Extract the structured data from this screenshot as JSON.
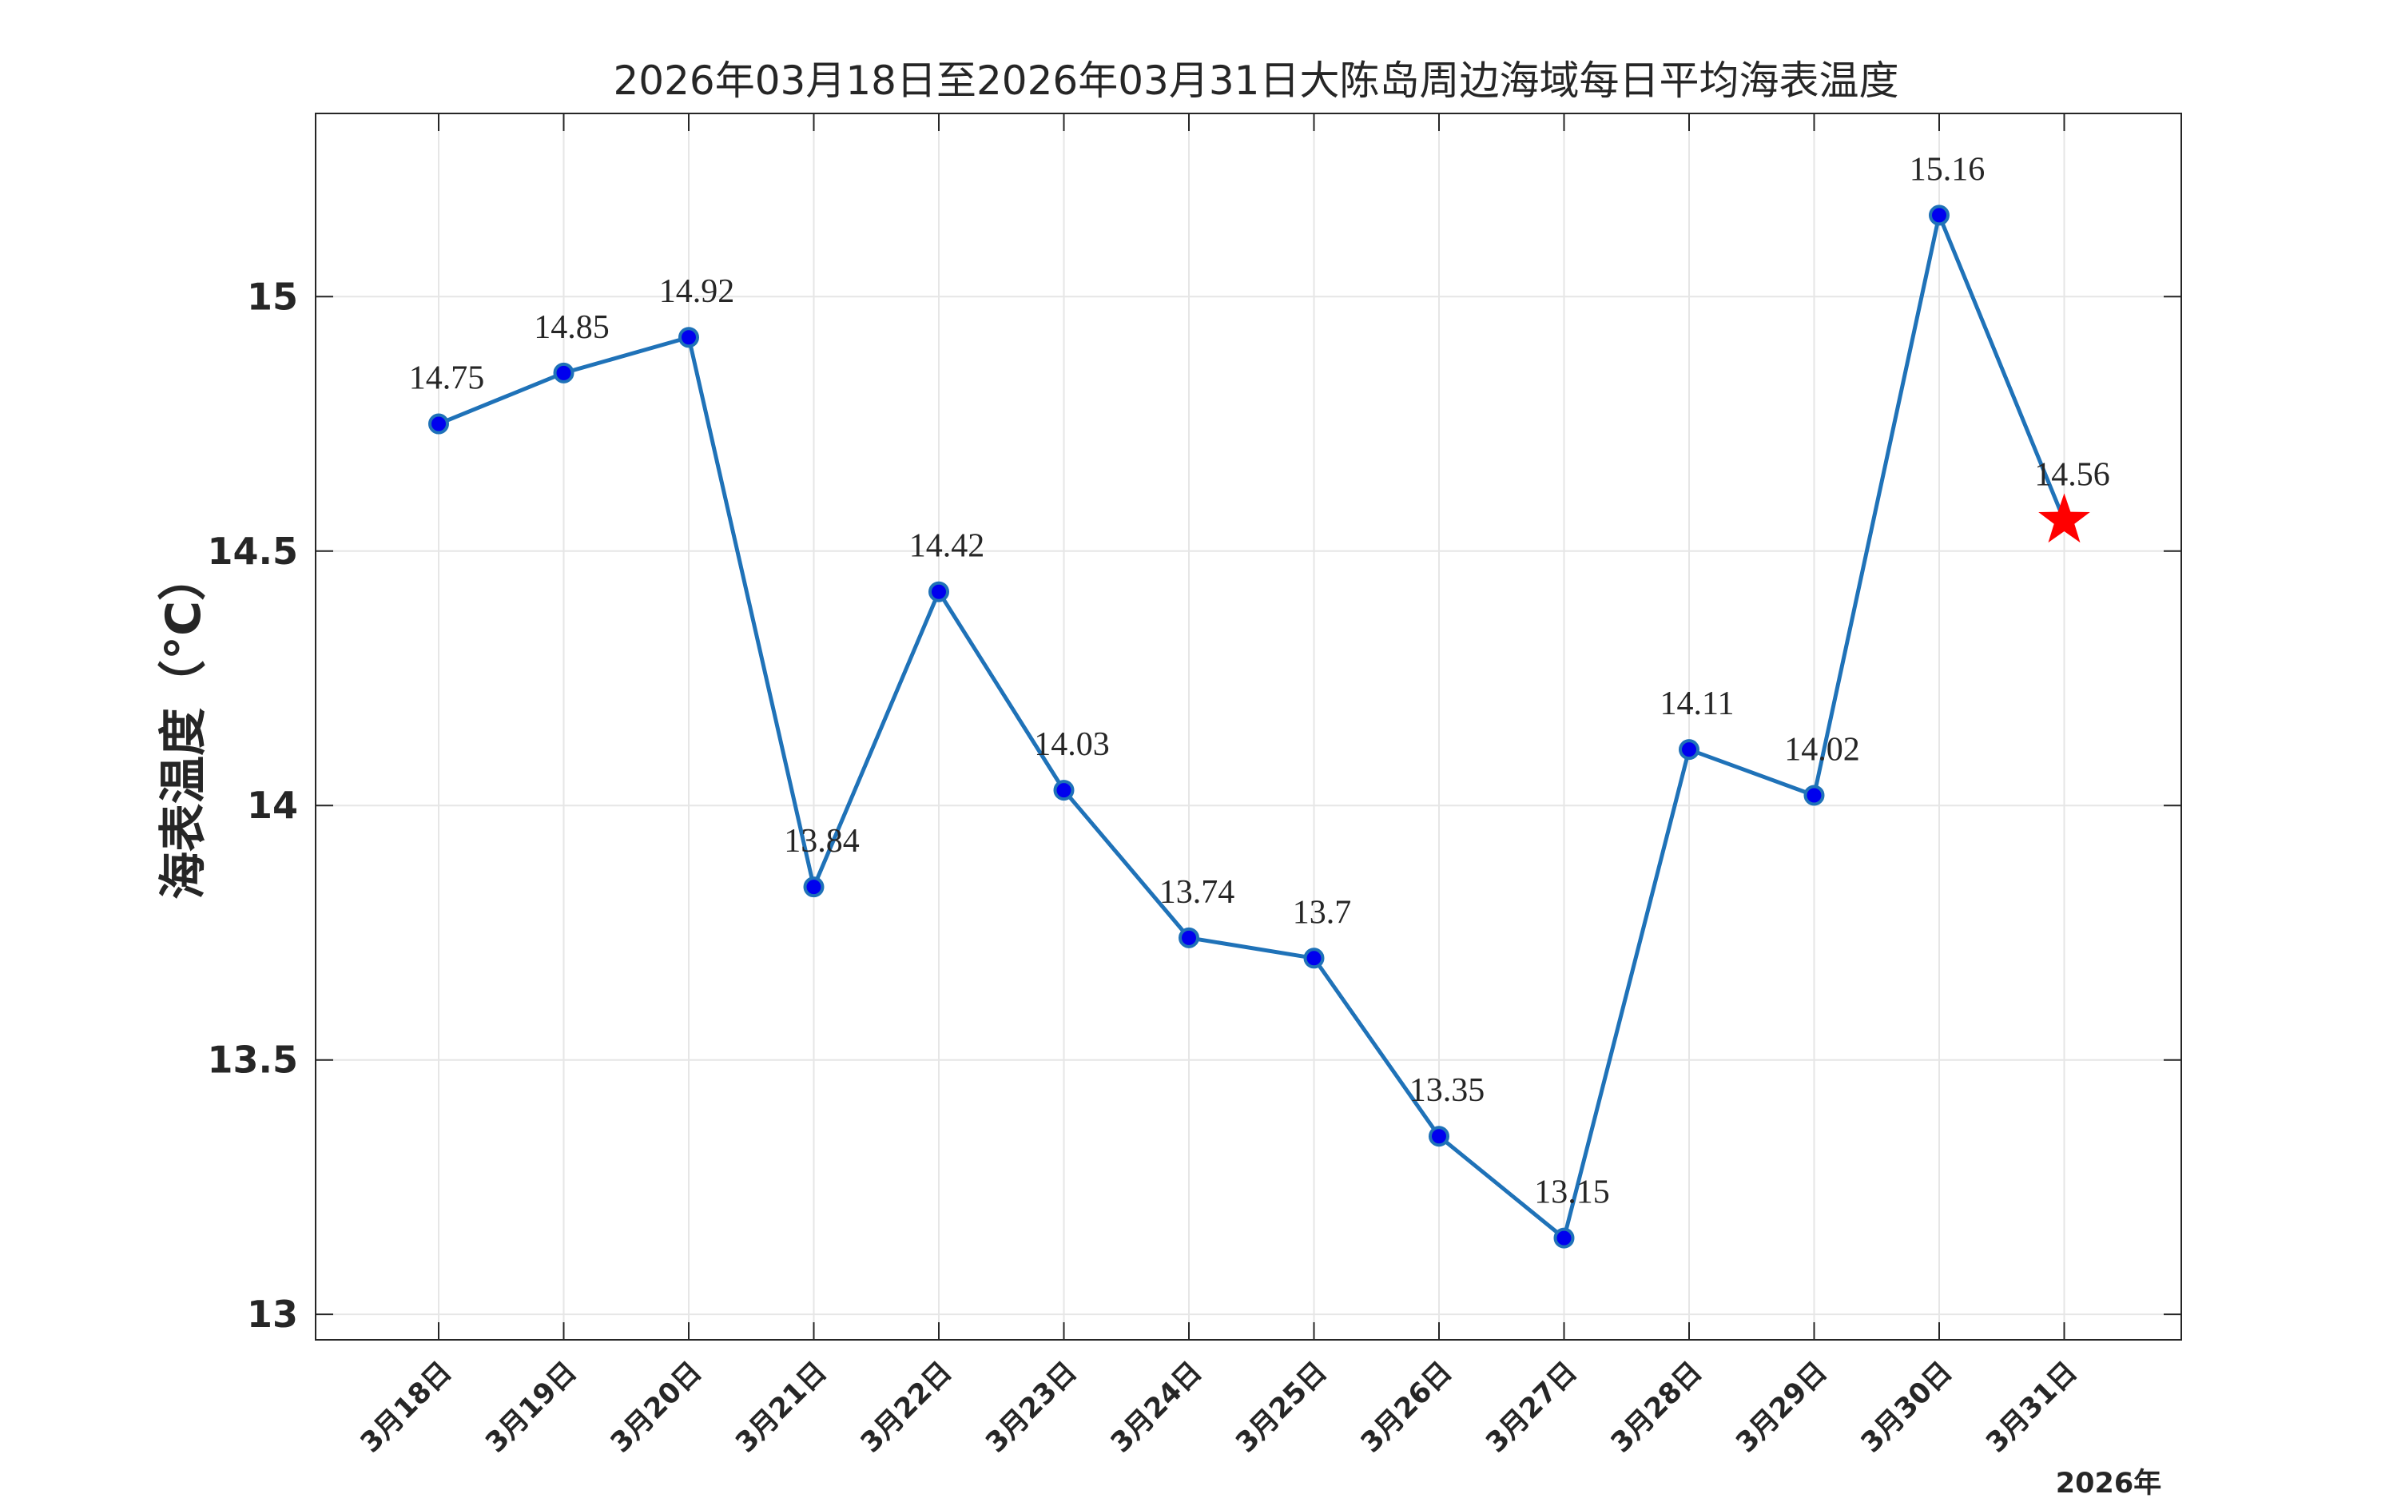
{
  "chart_data": {
    "type": "line",
    "title": "2026年03月18日至2026年03月31日大陈岛周边海域每日平均海表温度",
    "ylabel": "海表温度（°C）",
    "xlabel": "2026年",
    "categories": [
      "3月18日",
      "3月19日",
      "3月20日",
      "3月21日",
      "3月22日",
      "3月23日",
      "3月24日",
      "3月25日",
      "3月26日",
      "3月27日",
      "3月28日",
      "3月29日",
      "3月30日",
      "3月31日"
    ],
    "values": [
      14.75,
      14.85,
      14.92,
      13.84,
      14.42,
      14.03,
      13.74,
      13.7,
      13.35,
      13.15,
      14.11,
      14.02,
      15.16,
      14.56
    ],
    "data_labels": [
      "14.75",
      "14.85",
      "14.92",
      "13.84",
      "14.42",
      "14.03",
      "13.74",
      "13.7",
      "13.35",
      "13.15",
      "14.11",
      "14.02",
      "15.16",
      "14.56"
    ],
    "ylim": [
      12.95,
      15.36
    ],
    "yticks": [
      13,
      13.5,
      14,
      14.5,
      15
    ],
    "ytick_labels": [
      "13",
      "13.5",
      "14",
      "14.5",
      "15"
    ],
    "grid": true,
    "highlight_last_point": "red-star",
    "colors": {
      "line": "#1f72b8",
      "marker": "#0000ee",
      "star": "#ff0000"
    }
  }
}
